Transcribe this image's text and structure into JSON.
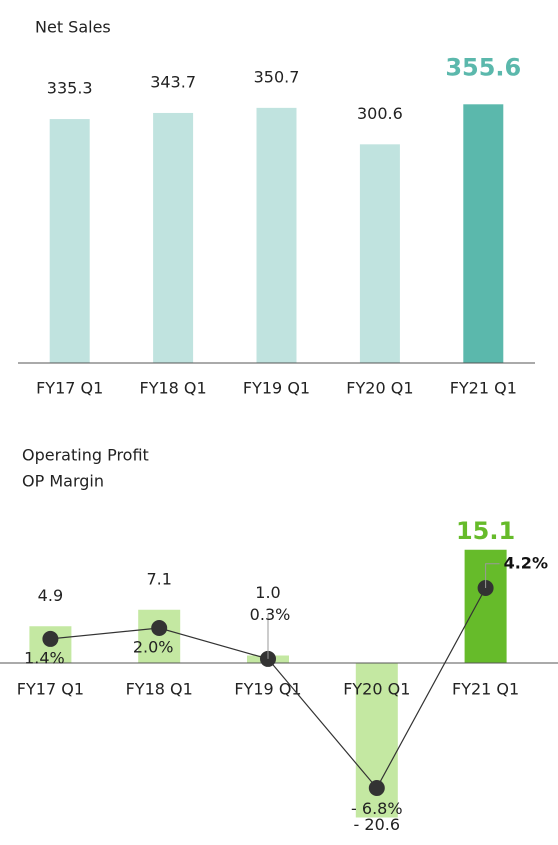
{
  "chart_data": [
    {
      "type": "bar",
      "title": "Net Sales",
      "categories": [
        "FY17 Q1",
        "FY18 Q1",
        "FY19 Q1",
        "FY20 Q1",
        "FY21 Q1"
      ],
      "values": [
        335.3,
        343.7,
        350.7,
        300.6,
        355.6
      ],
      "colors": [
        "#c0e3df",
        "#c0e3df",
        "#c0e3df",
        "#c0e3df",
        "#5bb8ac"
      ],
      "ylim": [
        0,
        400
      ]
    },
    {
      "type": "bar-line",
      "categories": [
        "FY17 Q1",
        "FY18 Q1",
        "FY19 Q1",
        "FY20 Q1",
        "FY21 Q1"
      ],
      "series": [
        {
          "name": "Operating Profit",
          "values": [
            4.9,
            7.1,
            1.0,
            -20.6,
            15.1
          ],
          "value_labels": [
            "4.9",
            "7.1",
            "1.0",
            "- 20.6",
            "15.1"
          ],
          "colors": [
            "#c4e8a2",
            "#c4e8a2",
            "#c4e8a2",
            "#c4e8a2",
            "#66bb2a"
          ]
        },
        {
          "name": "OP Margin",
          "axis": "y2",
          "color": "#333333",
          "values": [
            1.4,
            2.0,
            0.3,
            -6.8,
            4.2
          ],
          "value_labels": [
            "1.4%",
            "2.0%",
            "0.3%",
            "- 6.8%",
            "4.2%"
          ]
        }
      ],
      "ylim": [
        -22,
        18
      ],
      "y2lim": [
        -9,
        7.5
      ]
    }
  ]
}
